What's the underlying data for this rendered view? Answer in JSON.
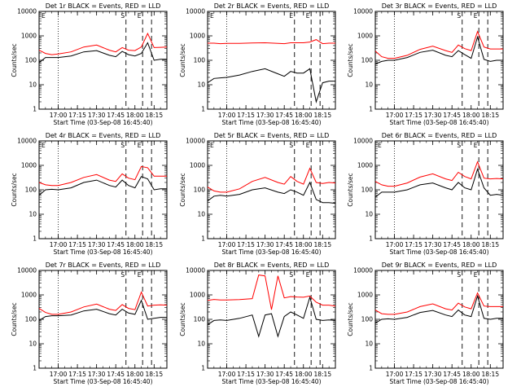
{
  "chart_data": [
    {
      "type": "line",
      "title": "Det 1r BLACK = Events, RED = LLD",
      "xlabel": "Start Time (03-Sep-08 16:45:40)",
      "ylabel": "Counts/sec",
      "yscale": "log",
      "ylim": [
        1,
        10000
      ],
      "y_ticks": [
        "1",
        "10",
        "100",
        "1000",
        "10000"
      ],
      "x_ticks": [
        "17:00",
        "17:15",
        "17:30",
        "17:45",
        "18:00",
        "18:15"
      ],
      "markers": [
        "E",
        "S",
        "E"
      ],
      "series": [
        {
          "color": "#000000",
          "x": [
            "16:45",
            "16:50",
            "16:55",
            "17:00",
            "17:10",
            "17:20",
            "17:30",
            "17:40",
            "17:45",
            "17:50",
            "17:55",
            "18:00",
            "18:05",
            "18:10",
            "18:15",
            "18:20",
            "18:25"
          ],
          "values": [
            80,
            130,
            130,
            130,
            150,
            220,
            250,
            160,
            140,
            230,
            170,
            150,
            190,
            520,
            100,
            110,
            110
          ]
        },
        {
          "color": "#ff0000",
          "x": [
            "16:45",
            "16:50",
            "16:55",
            "17:00",
            "17:10",
            "17:20",
            "17:30",
            "17:40",
            "17:45",
            "17:50",
            "17:55",
            "18:00",
            "18:05",
            "18:10",
            "18:15",
            "18:20",
            "18:25"
          ],
          "values": [
            260,
            190,
            170,
            180,
            220,
            350,
            420,
            260,
            220,
            330,
            260,
            250,
            350,
            1250,
            330,
            340,
            350
          ]
        }
      ]
    },
    {
      "type": "line",
      "title": "Det 2r BLACK = Events, RED = LLD",
      "xlabel": "Start Time (03-Sep-08 16:45:40)",
      "ylabel": "Counts/sec",
      "yscale": "log",
      "ylim": [
        1,
        10000
      ],
      "y_ticks": [
        "1",
        "10",
        "100",
        "1000",
        "10000"
      ],
      "x_ticks": [
        "17:00",
        "17:15",
        "17:30",
        "17:45",
        "18:00",
        "18:15"
      ],
      "markers": [
        "E",
        "S",
        "E",
        "E"
      ],
      "series": [
        {
          "color": "#000000",
          "x": [
            "16:45",
            "16:50",
            "16:55",
            "17:00",
            "17:10",
            "17:20",
            "17:30",
            "17:40",
            "17:45",
            "17:50",
            "17:55",
            "18:00",
            "18:05",
            "18:10",
            "18:15",
            "18:20",
            "18:25"
          ],
          "values": [
            12,
            18,
            19,
            20,
            25,
            35,
            45,
            28,
            22,
            35,
            30,
            30,
            45,
            2,
            12,
            14,
            14
          ]
        },
        {
          "color": "#ff0000",
          "x": [
            "16:45",
            "16:50",
            "16:55",
            "17:00",
            "17:10",
            "17:20",
            "17:30",
            "17:40",
            "17:45",
            "17:50",
            "17:55",
            "18:00",
            "18:05",
            "18:10",
            "18:15",
            "18:20",
            "18:25"
          ],
          "values": [
            500,
            500,
            480,
            490,
            490,
            510,
            520,
            490,
            480,
            520,
            520,
            520,
            560,
            700,
            480,
            500,
            500
          ]
        }
      ]
    },
    {
      "type": "line",
      "title": "Det 3r BLACK = Events, RED = LLD",
      "xlabel": "Start Time (03-Sep-08 16:45:40)",
      "ylabel": "Counts/sec",
      "yscale": "log",
      "ylim": [
        1,
        10000
      ],
      "y_ticks": [
        "1",
        "10",
        "100",
        "1000",
        "10000"
      ],
      "x_ticks": [
        "17:00",
        "17:15",
        "17:30",
        "17:45",
        "18:00",
        "18:15"
      ],
      "markers": [
        "S",
        "E"
      ],
      "series": [
        {
          "color": "#000000",
          "x": [
            "16:45",
            "16:50",
            "16:55",
            "17:00",
            "17:10",
            "17:20",
            "17:30",
            "17:40",
            "17:45",
            "17:50",
            "17:55",
            "18:00",
            "18:05",
            "18:10",
            "18:15",
            "18:20",
            "18:25"
          ],
          "values": [
            70,
            90,
            100,
            100,
            130,
            210,
            260,
            160,
            140,
            250,
            170,
            120,
            900,
            110,
            90,
            100,
            100
          ]
        },
        {
          "color": "#ff0000",
          "x": [
            "16:45",
            "16:50",
            "16:55",
            "17:00",
            "17:10",
            "17:20",
            "17:30",
            "17:40",
            "17:45",
            "17:50",
            "17:55",
            "18:00",
            "18:05",
            "18:10",
            "18:15",
            "18:20",
            "18:25"
          ],
          "values": [
            240,
            140,
            120,
            120,
            160,
            280,
            380,
            250,
            210,
            420,
            300,
            250,
            1500,
            350,
            290,
            290,
            290
          ]
        }
      ]
    },
    {
      "type": "line",
      "title": "Det 4r BLACK = Events, RED = LLD",
      "xlabel": "Start Time (03-Sep-08 16:45:40)",
      "ylabel": "Counts/sec",
      "yscale": "log",
      "ylim": [
        1,
        10000
      ],
      "y_ticks": [
        "1",
        "10",
        "100",
        "1000",
        "10000"
      ],
      "x_ticks": [
        "17:00",
        "17:15",
        "17:30",
        "17:45",
        "18:00",
        "18:15"
      ],
      "markers": [
        "E",
        "S",
        "E"
      ],
      "series": [
        {
          "color": "#000000",
          "x": [
            "16:45",
            "16:50",
            "16:55",
            "17:00",
            "17:10",
            "17:20",
            "17:30",
            "17:40",
            "17:45",
            "17:50",
            "17:55",
            "18:00",
            "18:05",
            "18:10",
            "18:15",
            "18:20",
            "18:25"
          ],
          "values": [
            60,
            100,
            105,
            100,
            120,
            200,
            250,
            150,
            130,
            250,
            150,
            120,
            350,
            280,
            100,
            110,
            110
          ]
        },
        {
          "color": "#ff0000",
          "x": [
            "16:45",
            "16:50",
            "16:55",
            "17:00",
            "17:10",
            "17:20",
            "17:30",
            "17:40",
            "17:45",
            "17:50",
            "17:55",
            "18:00",
            "18:05",
            "18:10",
            "18:15",
            "18:20",
            "18:25"
          ],
          "values": [
            200,
            160,
            150,
            150,
            200,
            320,
            420,
            250,
            220,
            450,
            300,
            260,
            900,
            800,
            360,
            360,
            360
          ]
        }
      ]
    },
    {
      "type": "line",
      "title": "Det 5r BLACK = Events, RED = LLD",
      "xlabel": "Start Time (03-Sep-08 16:45:40)",
      "ylabel": "Counts/sec",
      "yscale": "log",
      "ylim": [
        1,
        10000
      ],
      "y_ticks": [
        "1",
        "10",
        "100",
        "1000",
        "10000"
      ],
      "x_ticks": [
        "17:00",
        "17:15",
        "17:30",
        "17:45",
        "18:00",
        "18:15"
      ],
      "markers": [
        "E",
        "S",
        "E"
      ],
      "series": [
        {
          "color": "#000000",
          "x": [
            "16:45",
            "16:50",
            "16:55",
            "17:00",
            "17:10",
            "17:20",
            "17:30",
            "17:40",
            "17:45",
            "17:50",
            "17:55",
            "18:00",
            "18:05",
            "18:10",
            "18:15",
            "18:20",
            "18:25"
          ],
          "values": [
            35,
            55,
            60,
            55,
            65,
            100,
            120,
            80,
            70,
            100,
            80,
            60,
            200,
            40,
            30,
            30,
            28
          ]
        },
        {
          "color": "#ff0000",
          "x": [
            "16:45",
            "16:50",
            "16:55",
            "17:00",
            "17:10",
            "17:20",
            "17:30",
            "17:40",
            "17:45",
            "17:50",
            "17:55",
            "18:00",
            "18:05",
            "18:10",
            "18:15",
            "18:20",
            "18:25"
          ],
          "values": [
            130,
            90,
            80,
            80,
            110,
            220,
            320,
            200,
            170,
            350,
            220,
            170,
            750,
            200,
            180,
            200,
            190
          ]
        }
      ]
    },
    {
      "type": "line",
      "title": "Det 6r BLACK = Events, RED = LLD",
      "xlabel": "Start Time (03-Sep-08 16:45:40)",
      "ylabel": "Counts/sec",
      "yscale": "log",
      "ylim": [
        1,
        10000
      ],
      "y_ticks": [
        "1",
        "10",
        "100",
        "1000",
        "10000"
      ],
      "x_ticks": [
        "17:00",
        "17:15",
        "17:30",
        "17:45",
        "18:00",
        "18:15"
      ],
      "markers": [
        "E",
        "S",
        "E"
      ],
      "series": [
        {
          "color": "#000000",
          "x": [
            "16:45",
            "16:50",
            "16:55",
            "17:00",
            "17:10",
            "17:20",
            "17:30",
            "17:40",
            "17:45",
            "17:50",
            "17:55",
            "18:00",
            "18:05",
            "18:10",
            "18:15",
            "18:20",
            "18:25"
          ],
          "values": [
            50,
            80,
            80,
            80,
            100,
            160,
            190,
            120,
            100,
            200,
            120,
            100,
            700,
            120,
            60,
            65,
            60
          ]
        },
        {
          "color": "#ff0000",
          "x": [
            "16:45",
            "16:50",
            "16:55",
            "17:00",
            "17:10",
            "17:20",
            "17:30",
            "17:40",
            "17:45",
            "17:50",
            "17:55",
            "18:00",
            "18:05",
            "18:10",
            "18:15",
            "18:20",
            "18:25"
          ],
          "values": [
            220,
            160,
            140,
            140,
            190,
            330,
            450,
            280,
            240,
            520,
            350,
            280,
            1400,
            300,
            280,
            290,
            280
          ]
        }
      ]
    },
    {
      "type": "line",
      "title": "Det 7r BLACK = Events, RED = LLD",
      "xlabel": "Start Time (03-Sep-08 16:45:40)",
      "ylabel": "Counts/sec",
      "yscale": "log",
      "ylim": [
        1,
        10000
      ],
      "y_ticks": [
        "1",
        "10",
        "100",
        "1000",
        "10000"
      ],
      "x_ticks": [
        "17:00",
        "17:15",
        "17:30",
        "17:45",
        "18:00",
        "18:15"
      ],
      "markers": [
        "S",
        "E"
      ],
      "series": [
        {
          "color": "#000000",
          "x": [
            "16:45",
            "16:50",
            "16:55",
            "17:00",
            "17:10",
            "17:20",
            "17:30",
            "17:40",
            "17:45",
            "17:50",
            "17:55",
            "18:00",
            "18:05",
            "18:10",
            "18:15",
            "18:20",
            "18:25"
          ],
          "values": [
            90,
            130,
            140,
            140,
            150,
            220,
            260,
            170,
            150,
            260,
            180,
            160,
            600,
            100,
            110,
            120,
            120
          ]
        },
        {
          "color": "#ff0000",
          "x": [
            "16:45",
            "16:50",
            "16:55",
            "17:00",
            "17:10",
            "17:20",
            "17:30",
            "17:40",
            "17:45",
            "17:50",
            "17:55",
            "18:00",
            "18:05",
            "18:10",
            "18:15",
            "18:20",
            "18:25"
          ],
          "values": [
            280,
            190,
            160,
            160,
            200,
            320,
            420,
            260,
            230,
            400,
            280,
            250,
            1300,
            350,
            380,
            390,
            380
          ]
        }
      ]
    },
    {
      "type": "line",
      "title": "Det 8r BLACK = Events, RED = LLD",
      "xlabel": "Start Time (03-Sep-08 16:45:40)",
      "ylabel": "Counts/sec",
      "yscale": "log",
      "ylim": [
        1,
        10000
      ],
      "y_ticks": [
        "1",
        "10",
        "100",
        "1000",
        "10000"
      ],
      "x_ticks": [
        "17:00",
        "17:15",
        "17:30",
        "17:45",
        "18:00",
        "18:15"
      ],
      "markers": [
        "S",
        "E"
      ],
      "series": [
        {
          "color": "#000000",
          "x": [
            "16:45",
            "16:50",
            "16:55",
            "17:00",
            "17:10",
            "17:20",
            "17:25",
            "17:30",
            "17:35",
            "17:40",
            "17:45",
            "17:50",
            "17:55",
            "18:00",
            "18:05",
            "18:10",
            "18:15",
            "18:20",
            "18:25"
          ],
          "values": [
            60,
            90,
            95,
            90,
            110,
            150,
            20,
            150,
            170,
            20,
            130,
            200,
            150,
            110,
            800,
            100,
            90,
            95,
            90
          ]
        },
        {
          "color": "#ff0000",
          "x": [
            "16:45",
            "16:50",
            "16:55",
            "17:00",
            "17:10",
            "17:20",
            "17:25",
            "17:30",
            "17:35",
            "17:40",
            "17:45",
            "17:50",
            "17:55",
            "18:00",
            "18:05",
            "18:10",
            "18:15",
            "18:20",
            "18:25"
          ],
          "values": [
            600,
            650,
            620,
            620,
            640,
            700,
            6500,
            6000,
            250,
            6000,
            750,
            850,
            820,
            800,
            900,
            500,
            380,
            380,
            350
          ]
        }
      ]
    },
    {
      "type": "line",
      "title": "Det 9r BLACK = Events, RED = LLD",
      "xlabel": "Start Time (03-Sep-08 16:45:40)",
      "ylabel": "Counts/sec",
      "yscale": "log",
      "ylim": [
        1,
        10000
      ],
      "y_ticks": [
        "1",
        "10",
        "100",
        "1000",
        "10000"
      ],
      "x_ticks": [
        "17:00",
        "17:15",
        "17:30",
        "17:45",
        "18:00",
        "18:15"
      ],
      "markers": [
        "S",
        "E"
      ],
      "series": [
        {
          "color": "#000000",
          "x": [
            "16:45",
            "16:50",
            "16:55",
            "17:00",
            "17:10",
            "17:20",
            "17:30",
            "17:40",
            "17:45",
            "17:50",
            "17:55",
            "18:00",
            "18:05",
            "18:10",
            "18:15",
            "18:20",
            "18:25"
          ],
          "values": [
            70,
            100,
            105,
            100,
            120,
            190,
            230,
            150,
            130,
            240,
            150,
            130,
            900,
            110,
            100,
            110,
            110
          ]
        },
        {
          "color": "#ff0000",
          "x": [
            "16:45",
            "16:50",
            "16:55",
            "17:00",
            "17:10",
            "17:20",
            "17:30",
            "17:40",
            "17:45",
            "17:50",
            "17:55",
            "18:00",
            "18:05",
            "18:10",
            "18:15",
            "18:20",
            "18:25"
          ],
          "values": [
            240,
            170,
            160,
            160,
            200,
            330,
            430,
            270,
            240,
            460,
            320,
            270,
            1200,
            350,
            330,
            330,
            330
          ]
        }
      ]
    }
  ]
}
